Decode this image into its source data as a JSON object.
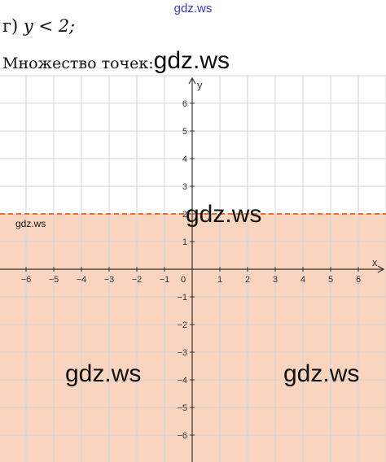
{
  "header": {
    "watermark": "gdz.ws",
    "task_label": "г)",
    "inequality": "y < 2;",
    "set_caption": "Множество точек:",
    "inline_watermark": "gdz.ws"
  },
  "graph": {
    "x_axis_label": "x",
    "y_axis_label": "y",
    "origin_label": "0",
    "x_ticks": [
      -6,
      -5,
      -4,
      -3,
      -2,
      -1,
      1,
      2,
      3,
      4,
      5,
      6
    ],
    "y_ticks": [
      6,
      5,
      4,
      3,
      2,
      1,
      -1,
      -2,
      -3,
      -4,
      -5,
      -6
    ],
    "boundary_y": 2,
    "boundary_style": "dashed",
    "region": "below",
    "region_color": "#f9d5bf",
    "boundary_color": "#e8702a",
    "grid_color": "#d4d4d4"
  },
  "watermarks": {
    "center": "gdz.ws",
    "small_left": "gdz.ws",
    "bottom_left": "gdz.ws",
    "bottom_right": "gdz.ws"
  }
}
